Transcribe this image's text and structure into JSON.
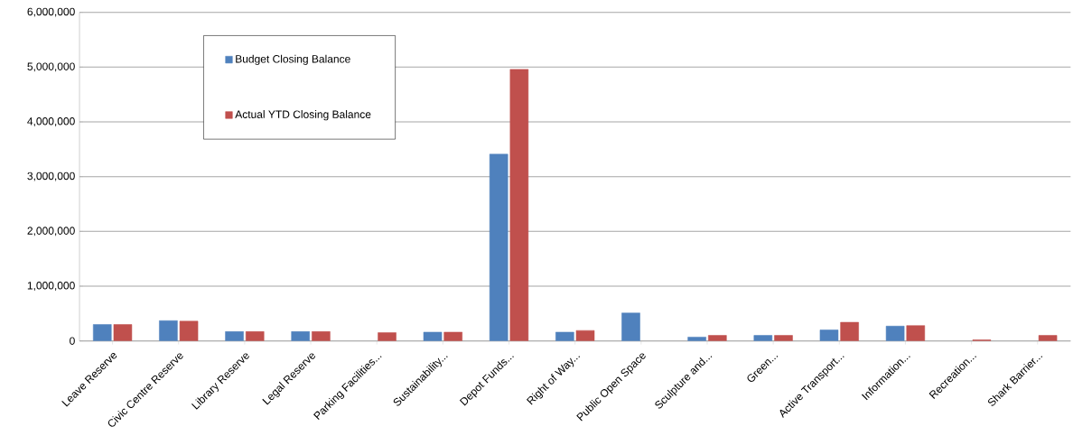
{
  "chart_data": {
    "type": "bar",
    "categories": [
      "Leave Reserve",
      "Civic Centre Reserve",
      "Library Reserve",
      "Legal Reserve",
      "Parking Facilities...",
      "Sustainability...",
      "Depot Funds...",
      "Right of Way...",
      "Public Open Space",
      "Sculpture and...",
      "Green...",
      "Active Transport...",
      "Information...",
      "Recreation...",
      "Shark Barrier..."
    ],
    "series": [
      {
        "name": "Budget Closing Balance",
        "color": "#4f81bd",
        "values": [
          300000,
          370000,
          170000,
          170000,
          null,
          160000,
          3410000,
          160000,
          510000,
          70000,
          100000,
          200000,
          270000,
          null,
          null
        ]
      },
      {
        "name": "Actual YTD Closing Balance",
        "color": "#c0504d",
        "values": [
          300000,
          360000,
          170000,
          170000,
          150000,
          160000,
          4960000,
          190000,
          null,
          100000,
          100000,
          340000,
          280000,
          20000,
          100000
        ]
      }
    ],
    "ylim": [
      0,
      6000000
    ],
    "yticks": [
      0,
      {
        "value": 1000000,
        "label": "1,000,000"
      },
      {
        "value": 2000000,
        "label": "2,000,000"
      },
      {
        "value": 3000000,
        "label": "3,000,000"
      },
      {
        "value": 4000000,
        "label": "4,000,000"
      },
      {
        "value": 5000000,
        "label": "5,000,000"
      },
      {
        "value": 6000000,
        "label": "6,000,000"
      }
    ],
    "grid": "y",
    "legend": "top left"
  }
}
